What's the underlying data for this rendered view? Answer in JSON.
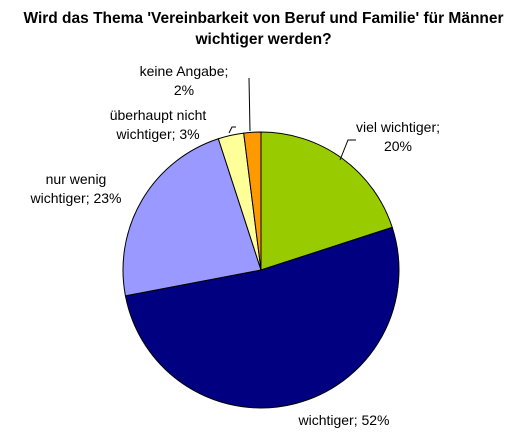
{
  "chart_data": {
    "type": "pie",
    "title_lines": [
      "Wird das Thema 'Vereinbarkeit von Beruf und Familie' für Männer",
      "wichtiger werden?"
    ],
    "start_angle_deg": 90,
    "direction": "clockwise",
    "slices": [
      {
        "name": "viel wichtiger",
        "value": 20,
        "color": "#99cc00",
        "label_lines": [
          "viel wichtiger;",
          "20%"
        ]
      },
      {
        "name": "wichtiger",
        "value": 52,
        "color": "#000080",
        "label_lines": [
          "wichtiger; 52%"
        ]
      },
      {
        "name": "nur wenig wichtiger",
        "value": 23,
        "color": "#9999ff",
        "label_lines": [
          "nur wenig",
          "wichtiger; 23%"
        ]
      },
      {
        "name": "überhaupt nicht wichtiger",
        "value": 3,
        "color": "#ffff99",
        "label_lines": [
          "überhaupt nicht",
          "wichtiger; 3%"
        ]
      },
      {
        "name": "keine Angabe",
        "value": 2,
        "color": "#ff9900",
        "label_lines": [
          "keine Angabe;",
          "2%"
        ]
      }
    ]
  }
}
